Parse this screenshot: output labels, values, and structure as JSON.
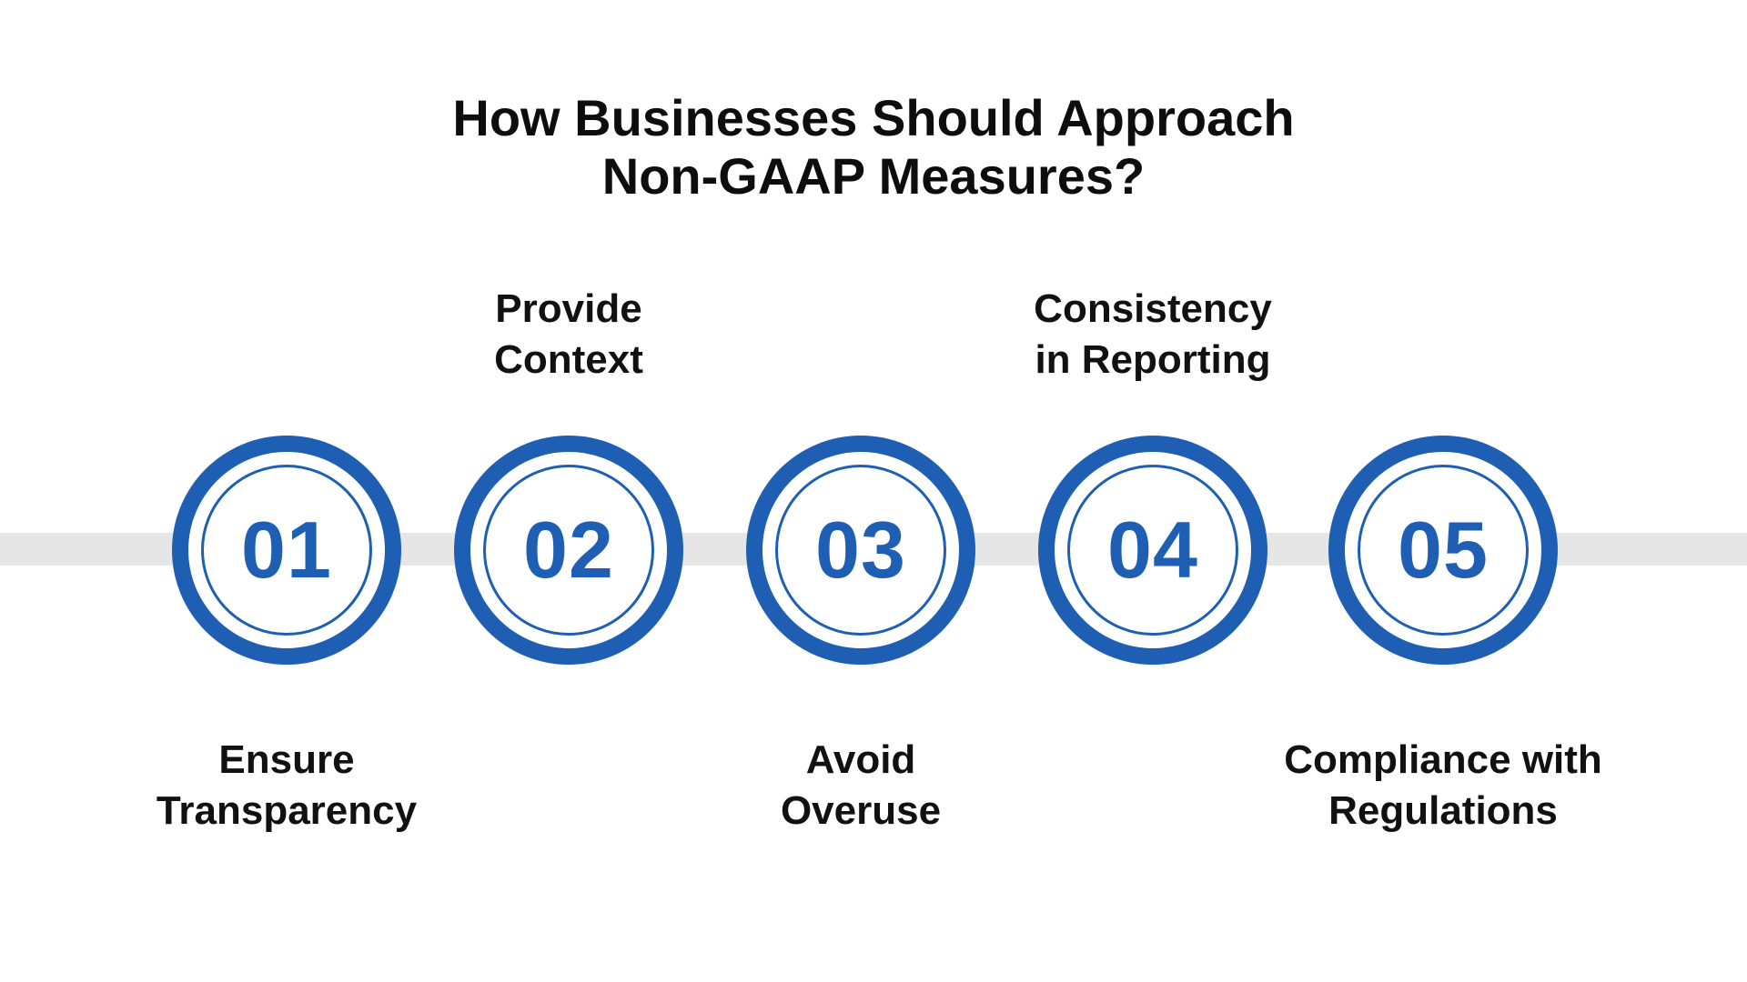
{
  "title": {
    "line1": "How Businesses Should Approach",
    "line2": "Non-GAAP Measures?"
  },
  "steps": [
    {
      "number": "01",
      "label_line1": "Ensure",
      "label_line2": "Transparency",
      "position": "below"
    },
    {
      "number": "02",
      "label_line1": "Provide",
      "label_line2": "Context",
      "position": "above"
    },
    {
      "number": "03",
      "label_line1": "Avoid",
      "label_line2": "Overuse",
      "position": "below"
    },
    {
      "number": "04",
      "label_line1": "Consistency",
      "label_line2": "in Reporting",
      "position": "above"
    },
    {
      "number": "05",
      "label_line1": "Compliance with",
      "label_line2": "Regulations",
      "position": "below"
    }
  ],
  "colors": {
    "accent": "#1e5fb4",
    "track": "#e6e6e6",
    "text": "#111111",
    "background": "#ffffff"
  }
}
